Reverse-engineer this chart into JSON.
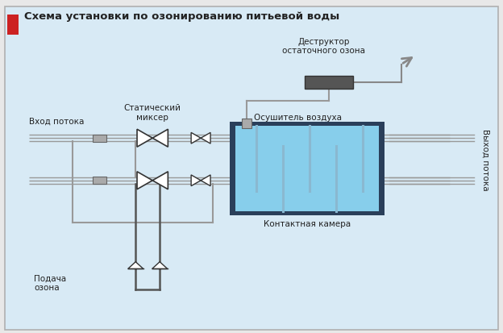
{
  "title": "Схема установки по озонированию питьевой воды",
  "title_color": "#222222",
  "title_square_color": "#cc2222",
  "bg_color": "#d8eaf5",
  "border_color": "#b0b0b0",
  "fig_bg": "#e8e8e8",
  "labels": {
    "vhod": "Вход потока",
    "mixer": "Статический\nмиксер",
    "osushitel": "Осушитель воздуха",
    "destruktor": "Деструктор\nостаточного озона",
    "kamera": "Контактная камера",
    "vyhod": "Выход потока",
    "podacha": "Подача\nозона"
  },
  "line_color": "#999999",
  "dark_line_color": "#555555",
  "valve_color": "#333333",
  "chamber_fill": "#87ceeb",
  "chamber_border": "#2a3f5a",
  "destruktor_fill": "#555555",
  "baffle_color": "#7aabcc",
  "connector_fill": "#aaaaaa"
}
